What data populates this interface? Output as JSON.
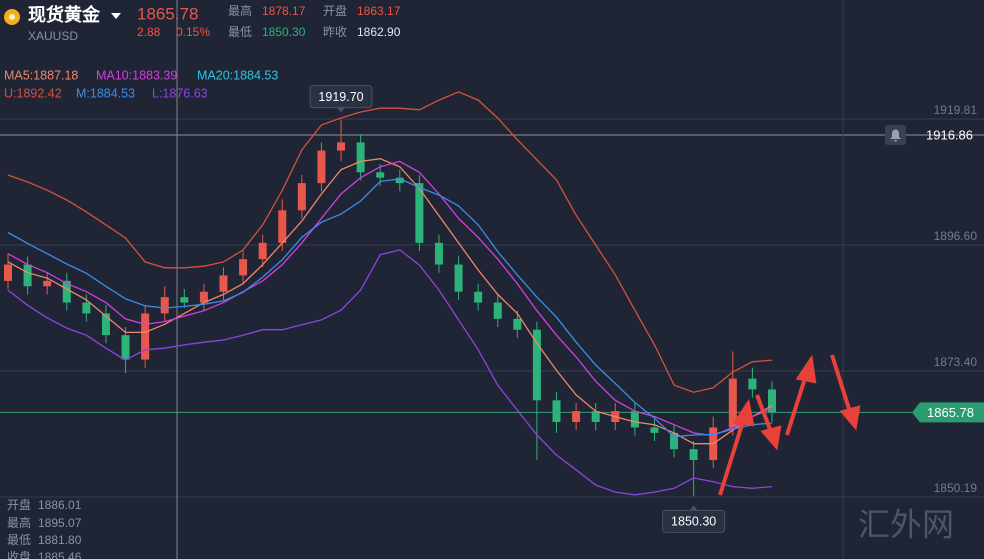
{
  "header": {
    "title": "现货黄金",
    "symbol": "XAUUSD",
    "price": "1865.78",
    "change": "2.88",
    "change_pct": "0.15%",
    "stats": [
      [
        "最高",
        "1878.17"
      ],
      [
        "开盘",
        "1863.17"
      ],
      [
        "最低",
        "1850.30"
      ],
      [
        "昨收",
        "1862.90"
      ]
    ]
  },
  "info_panel": [
    [
      "开盘",
      "1886.01"
    ],
    [
      "最高",
      "1895.07"
    ],
    [
      "最低",
      "1881.80"
    ],
    [
      "收盘",
      "1885.46"
    ]
  ],
  "watermark": "汇外网",
  "chart_data": {
    "type": "candlestick",
    "open": [
      1890,
      1893,
      1889,
      1890,
      1886,
      1884,
      1880,
      1875.5,
      1884,
      1887,
      1886,
      1888,
      1891,
      1894,
      1897,
      1903,
      1908,
      1914,
      1915.5,
      1910,
      1909,
      1908,
      1897,
      1893,
      1888,
      1886,
      1883,
      1881,
      1868,
      1864,
      1866,
      1864,
      1866,
      1863,
      1862,
      1859,
      1857,
      1863,
      1872,
      1870
    ],
    "high": [
      1895,
      1894.5,
      1891.5,
      1891.5,
      1887.5,
      1885.5,
      1881.5,
      1885.5,
      1889,
      1888.5,
      1889.5,
      1892.5,
      1895.5,
      1898.5,
      1905,
      1909.5,
      1915.5,
      1919.7,
      1917,
      1911.5,
      1910.5,
      1909.5,
      1898.5,
      1894.5,
      1889.5,
      1887.5,
      1884.5,
      1882.5,
      1869.5,
      1867.5,
      1867.5,
      1867.5,
      1867.5,
      1864.5,
      1863.5,
      1860.5,
      1865,
      1877,
      1874,
      1871.5
    ],
    "low": [
      1888.5,
      1887.5,
      1887.5,
      1884.5,
      1882.5,
      1878.5,
      1873,
      1874,
      1882.5,
      1885,
      1884.5,
      1886.5,
      1889.5,
      1892.5,
      1895.5,
      1901.5,
      1906.5,
      1912,
      1908.5,
      1907.5,
      1906.5,
      1895.5,
      1891.5,
      1886.5,
      1884.5,
      1881.5,
      1879.5,
      1857,
      1862,
      1862.5,
      1862.5,
      1862.5,
      1861.5,
      1860.5,
      1857.5,
      1850.3,
      1855.5,
      1861.5,
      1868.5,
      1864
    ],
    "close": [
      1893,
      1889,
      1890,
      1886,
      1884,
      1880,
      1875.5,
      1884,
      1887,
      1886,
      1888,
      1891,
      1894,
      1897,
      1903,
      1908,
      1914,
      1915.5,
      1910,
      1909,
      1908,
      1897,
      1893,
      1888,
      1886,
      1883,
      1881,
      1868,
      1864,
      1866,
      1864,
      1866,
      1863,
      1862,
      1859,
      1857,
      1863,
      1872,
      1870,
      1865.78
    ],
    "up_color": "#e8574b",
    "down_color": "#2db37a",
    "series": [
      {
        "name": "MA5:1887.18",
        "color": "#f0876a",
        "values": [
          1893.5,
          1891.5,
          1890.5,
          1888.5,
          1886.5,
          1883.5,
          1880.5,
          1880.5,
          1882,
          1884,
          1886,
          1887.5,
          1889.5,
          1893,
          1897,
          1901,
          1906,
          1910.5,
          1912,
          1912.5,
          1911,
          1907,
          1902,
          1897,
          1892,
          1887.5,
          1884,
          1878.5,
          1873.5,
          1869,
          1866,
          1865,
          1864,
          1863.5,
          1862,
          1860,
          1860,
          1862.5,
          1865,
          1867
        ]
      },
      {
        "name": "MA10:1883.39",
        "color": "#d63de0",
        "values": [
          1895,
          1893,
          1891.5,
          1889.5,
          1888,
          1886,
          1883,
          1882,
          1882.5,
          1883.5,
          1884.5,
          1886,
          1888,
          1890,
          1893,
          1897,
          1901.5,
          1906,
          1909,
          1911,
          1912,
          1910,
          1906,
          1901.5,
          1898,
          1894,
          1889.5,
          1884.5,
          1880,
          1876,
          1871.5,
          1868,
          1866,
          1865,
          1863.5,
          1862,
          1861.5,
          1863,
          1865,
          1866.5
        ]
      },
      {
        "name": "MA20:1884.53",
        "color": "#31c4e0"
      },
      {
        "name": "U:1892.42",
        "color": "#d9503a",
        "values": [
          1909.5,
          1908.2,
          1906.7,
          1904.9,
          1902.7,
          1900.3,
          1897.9,
          1893.5,
          1892.4,
          1892.4,
          1892.7,
          1893.5,
          1895.7,
          1900.3,
          1906.7,
          1914.1,
          1918.7,
          1920,
          1921.1,
          1921.8,
          1921.8,
          1921.5,
          1923.3,
          1924.8,
          1923.3,
          1920,
          1916,
          1912.3,
          1908.6,
          1902.1,
          1896.6,
          1891.1,
          1884.6,
          1878.2,
          1870.8,
          1869.5,
          1870.3,
          1873.2,
          1875.1,
          1875.4
        ]
      },
      {
        "name": "M:1884.53",
        "color": "#3a8de8",
        "values": [
          1898.9,
          1896.9,
          1895,
          1893.1,
          1891.4,
          1889,
          1886.7,
          1885.4,
          1885,
          1885.3,
          1885.7,
          1886.3,
          1887.9,
          1890.7,
          1893.9,
          1898,
          1900.8,
          1902.3,
          1904.7,
          1908.3,
          1908.8,
          1907.2,
          1905.8,
          1903.8,
          1900.3,
          1895.4,
          1891.1,
          1887,
          1883.3,
          1878.7,
          1874.5,
          1871.1,
          1867.6,
          1864.7,
          1861.3,
          1861.6,
          1861.7,
          1862.7,
          1863.5,
          1863.8
        ]
      },
      {
        "name": "L:1876.63",
        "color": "#8e44e0",
        "values": [
          1888.3,
          1885.5,
          1883.2,
          1881.3,
          1880,
          1877.6,
          1875.4,
          1877.3,
          1877.6,
          1878.2,
          1878.7,
          1879.1,
          1880,
          1881,
          1881,
          1881.9,
          1882.8,
          1884.6,
          1888.3,
          1894.8,
          1895.7,
          1892.9,
          1888.3,
          1882.8,
          1877.3,
          1870.8,
          1866.2,
          1861.6,
          1857.9,
          1855.2,
          1852.4,
          1851.1,
          1850.6,
          1851.1,
          1851.8,
          1853.7,
          1853,
          1852.1,
          1851.8,
          1852.1
        ]
      }
    ],
    "ylim": [
      1838.77,
      1941.73
    ],
    "yticks": [
      1919.81,
      {
        "value": 1896.6,
        "label": "1896.60"
      },
      {
        "value": 1873.4,
        "label": "1873.40"
      },
      1850.19
    ],
    "grid": true,
    "annotations": [
      {
        "value": 1919.7,
        "label": "1919.70"
      },
      {
        "value": 1850.3,
        "label": "1850.30"
      }
    ],
    "alert_line": {
      "value": 1916.86,
      "label": "1916.86"
    },
    "current_price": {
      "value": 1865.78,
      "label": "1865.78"
    }
  }
}
